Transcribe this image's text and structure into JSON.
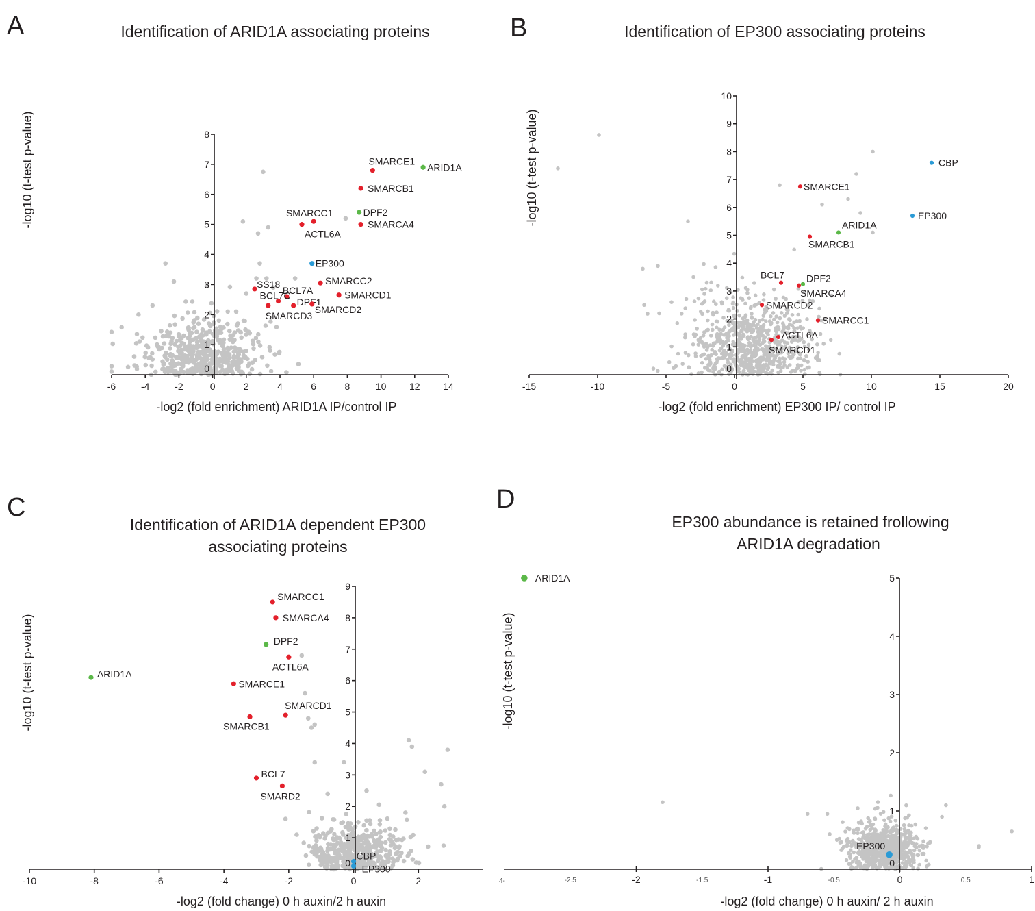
{
  "colors": {
    "background": "#0f1f0f",
    "gray": "#c4c4c4",
    "red": "#e3202b",
    "green": "#5bb848",
    "blue": "#2b9bd6",
    "axis": "#231f20"
  },
  "chart_data": [
    {
      "panel": "A",
      "type": "scatter",
      "title": "Identification of ARID1A associating proteins",
      "xlabel": "-log2 (fold enrichment) ARID1A IP/control IP",
      "ylabel": "-log10 (t-test p-value)",
      "xlim": [
        -6,
        14
      ],
      "ylim": [
        0,
        8
      ],
      "xticks": [
        "-6",
        "-4",
        "-2",
        "0",
        "2",
        "4",
        "6",
        "8",
        "10",
        "12",
        "14"
      ],
      "yticks": [
        "0",
        "1",
        "2",
        "3",
        "4",
        "5",
        "6",
        "7",
        "8"
      ],
      "highlighted": [
        {
          "label": "SMARCE1",
          "x": 9.5,
          "y": 6.8,
          "color": "red"
        },
        {
          "label": "ARID1A",
          "x": 12.5,
          "y": 6.9,
          "color": "green"
        },
        {
          "label": "SMARCB1",
          "x": 8.8,
          "y": 6.2,
          "color": "red"
        },
        {
          "label": "DPF2",
          "x": 8.7,
          "y": 5.4,
          "color": "green"
        },
        {
          "label": "SMARCC1",
          "x": 6.0,
          "y": 5.1,
          "color": "red"
        },
        {
          "label": "ACTL6A",
          "x": 5.3,
          "y": 5.0,
          "color": "red"
        },
        {
          "label": "SMARCA4",
          "x": 8.8,
          "y": 5.0,
          "color": "red"
        },
        {
          "label": "EP300",
          "x": 5.9,
          "y": 3.7,
          "color": "blue"
        },
        {
          "label": "SS18",
          "x": 2.5,
          "y": 2.85,
          "color": "red"
        },
        {
          "label": "SMARCC2",
          "x": 6.4,
          "y": 3.05,
          "color": "red"
        },
        {
          "label": "BCL7A",
          "x": 4.4,
          "y": 2.6,
          "color": "red"
        },
        {
          "label": "BCL7C",
          "x": 3.9,
          "y": 2.45,
          "color": "red"
        },
        {
          "label": "SMARCD1",
          "x": 7.5,
          "y": 2.65,
          "color": "red"
        },
        {
          "label": "DPF1",
          "x": 4.8,
          "y": 2.3,
          "color": "red"
        },
        {
          "label": "SMARCD3",
          "x": 3.3,
          "y": 2.3,
          "color": "red"
        },
        {
          "label": "SMARCD2",
          "x": 5.9,
          "y": 2.35,
          "color": "red"
        }
      ],
      "other_points": [
        [
          3.0,
          6.75
        ],
        [
          1.8,
          5.1
        ],
        [
          3.3,
          4.9
        ],
        [
          2.7,
          4.7
        ],
        [
          7.9,
          5.2
        ],
        [
          -2.8,
          3.7
        ],
        [
          2.8,
          3.7
        ],
        [
          4.9,
          3.2
        ],
        [
          -2.3,
          3.1
        ],
        [
          3.2,
          3.2
        ],
        [
          2.6,
          3.2
        ],
        [
          -4.4,
          2.0
        ],
        [
          3.6,
          2.9
        ],
        [
          2.0,
          2.7
        ],
        [
          1.4,
          2.1
        ],
        [
          1.5,
          1.7
        ]
      ],
      "cloud": {
        "x_center": -0.8,
        "y_center": 0.8,
        "x_spread": 1.8,
        "y_spread": 0.9,
        "count": 500
      }
    },
    {
      "panel": "B",
      "type": "scatter",
      "title": "Identification of EP300 associating proteins",
      "xlabel": "-log2 (fold enrichment) EP300 IP/ control IP",
      "ylabel": "-log10 (t-test p-value)",
      "xlim": [
        -15,
        20
      ],
      "ylim": [
        0,
        10
      ],
      "xticks": [
        "-15",
        "-10",
        "-5",
        "0",
        "5",
        "10",
        "15",
        "20"
      ],
      "yticks": [
        "0",
        "1",
        "2",
        "3",
        "4",
        "5",
        "6",
        "7",
        "8",
        "9",
        "10"
      ],
      "highlighted": [
        {
          "label": "CBP",
          "x": 14.4,
          "y": 7.6,
          "color": "blue"
        },
        {
          "label": "EP300",
          "x": 13.0,
          "y": 5.7,
          "color": "blue"
        },
        {
          "label": "SMARCE1",
          "x": 4.8,
          "y": 6.75,
          "color": "red"
        },
        {
          "label": "ARID1A",
          "x": 7.6,
          "y": 5.1,
          "color": "green"
        },
        {
          "label": "SMARCB1",
          "x": 5.5,
          "y": 4.95,
          "color": "red"
        },
        {
          "label": "BCL7",
          "x": 3.4,
          "y": 3.3,
          "color": "red"
        },
        {
          "label": "DPF2",
          "x": 5.0,
          "y": 3.25,
          "color": "green"
        },
        {
          "label": "SMARCA4",
          "x": 4.7,
          "y": 3.2,
          "color": "red"
        },
        {
          "label": "SMARCD2",
          "x": 2.0,
          "y": 2.5,
          "color": "red"
        },
        {
          "label": "SMARCC1",
          "x": 6.1,
          "y": 1.95,
          "color": "red"
        },
        {
          "label": "ACTL6A",
          "x": 3.2,
          "y": 1.35,
          "color": "red"
        },
        {
          "label": "SMARCD1",
          "x": 2.7,
          "y": 1.25,
          "color": "red"
        }
      ],
      "other_points": [
        [
          -9.9,
          8.6
        ],
        [
          -12.9,
          7.4
        ],
        [
          10.1,
          8.0
        ],
        [
          8.9,
          7.2
        ],
        [
          -6.7,
          3.8
        ],
        [
          -5.6,
          3.9
        ],
        [
          -3.4,
          5.5
        ],
        [
          -3.0,
          3.5
        ],
        [
          -6.6,
          2.5
        ],
        [
          -5.5,
          2.2
        ],
        [
          -4.6,
          2.6
        ],
        [
          -2.2,
          2.9
        ],
        [
          8.3,
          6.3
        ],
        [
          9.2,
          5.8
        ],
        [
          10.1,
          5.1
        ],
        [
          6.4,
          6.1
        ],
        [
          3.3,
          6.8
        ]
      ],
      "cloud": {
        "x_center": 1.3,
        "y_center": 1.2,
        "x_spread": 2.3,
        "y_spread": 1.3,
        "count": 750
      }
    },
    {
      "panel": "C",
      "type": "scatter",
      "title_lines": [
        "Identification of ARID1A dependent EP300",
        "associating proteins"
      ],
      "xlabel": "-log2 (fold change) 0 h auxin/2 h auxin",
      "ylabel": "-log10 (t-test p-value)",
      "xlim": [
        -10,
        4
      ],
      "ylim": [
        0,
        9
      ],
      "xticks": [
        "-10",
        "-8",
        "-6",
        "-4",
        "-2",
        "0",
        "2"
      ],
      "yticks": [
        "0",
        "1",
        "2",
        "3",
        "4",
        "5",
        "6",
        "7",
        "8",
        "9"
      ],
      "highlighted": [
        {
          "label": "SMARCC1",
          "x": -2.5,
          "y": 8.5,
          "color": "red"
        },
        {
          "label": "SMARCA4",
          "x": -2.4,
          "y": 8.0,
          "color": "red"
        },
        {
          "label": "DPF2",
          "x": -2.7,
          "y": 7.15,
          "color": "green"
        },
        {
          "label": "ACTL6A",
          "x": -2.0,
          "y": 6.75,
          "color": "red"
        },
        {
          "label": "ARID1A",
          "x": -8.1,
          "y": 6.1,
          "color": "green"
        },
        {
          "label": "SMARCE1",
          "x": -3.7,
          "y": 5.9,
          "color": "red"
        },
        {
          "label": "SMARCD1",
          "x": -2.1,
          "y": 4.9,
          "color": "red"
        },
        {
          "label": "SMARCB1",
          "x": -3.2,
          "y": 4.85,
          "color": "red"
        },
        {
          "label": "BCL7",
          "x": -3.0,
          "y": 2.9,
          "color": "red"
        },
        {
          "label": "SMARD2",
          "x": -2.2,
          "y": 2.65,
          "color": "red"
        },
        {
          "label": "CBP",
          "x": 0.0,
          "y": 0.25,
          "color": "blue"
        },
        {
          "label": "EP300",
          "x": 0.0,
          "y": 0.1,
          "color": "blue"
        }
      ],
      "other_points": [
        [
          -1.6,
          6.8
        ],
        [
          -1.5,
          5.6
        ],
        [
          -1.4,
          4.8
        ],
        [
          -1.2,
          4.6
        ],
        [
          -1.3,
          4.5
        ],
        [
          1.7,
          4.1
        ],
        [
          1.8,
          3.9
        ],
        [
          2.9,
          3.8
        ],
        [
          -1.2,
          3.4
        ],
        [
          -0.3,
          3.4
        ],
        [
          2.2,
          3.1
        ],
        [
          2.7,
          2.7
        ],
        [
          2.8,
          2.0
        ],
        [
          1.6,
          1.8
        ],
        [
          -2.1,
          1.6
        ],
        [
          -0.8,
          2.4
        ],
        [
          0.4,
          2.5
        ]
      ],
      "cloud": {
        "x_center": 0.1,
        "y_center": 0.7,
        "x_spread": 0.7,
        "y_spread": 0.6,
        "count": 450
      }
    },
    {
      "panel": "D",
      "type": "scatter",
      "title_lines": [
        "EP300 abundance is retained frollowing",
        "ARID1A degradation"
      ],
      "xlabel": "-log2 (fold change) 0 h auxin/ 2 h auxin",
      "ylabel": "-log10 (t-test p-value)",
      "xlim": [
        -3,
        1
      ],
      "ylim": [
        0,
        5
      ],
      "xticks_major": [
        "-2",
        "-1",
        "0",
        "1"
      ],
      "xticks_minor": [
        "-2.5",
        "-1.5",
        "-0.5",
        "0.5"
      ],
      "xtick_edge": "4-",
      "yticks": [
        "0",
        "1",
        "2",
        "3",
        "4",
        "5"
      ],
      "highlighted": [
        {
          "label": "ARID1A",
          "x": -2.85,
          "y": 5.0,
          "color": "green"
        },
        {
          "label": "EP300",
          "x": -0.08,
          "y": 0.25,
          "color": "blue"
        }
      ],
      "other_points": [
        [
          -1.8,
          1.15
        ],
        [
          -0.7,
          0.95
        ],
        [
          -0.55,
          0.95
        ],
        [
          0.85,
          0.65
        ],
        [
          0.6,
          0.4
        ],
        [
          0.6,
          0.38
        ],
        [
          0.35,
          1.1
        ],
        [
          0.32,
          0.9
        ]
      ],
      "cloud": {
        "x_center": -0.12,
        "y_center": 0.45,
        "x_spread": 0.14,
        "y_spread": 0.3,
        "count": 700
      }
    }
  ]
}
